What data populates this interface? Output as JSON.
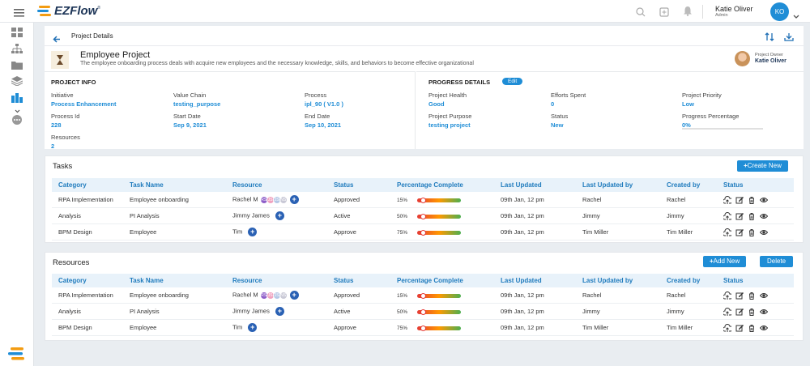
{
  "app": {
    "logo": "EZFlow",
    "logo_tm": "®"
  },
  "user": {
    "name": "Katie Oliver",
    "role": "Admin",
    "initials": "KO"
  },
  "page": {
    "title": "Project Details"
  },
  "project": {
    "name": "Employee Project",
    "description": "The employee onboarding process deals with acquire new employees and the necessary knowledge, skills, and behaviors to become effective organizational",
    "owner_label": "Project Owner",
    "owner_name": "Katie Oliver"
  },
  "project_info": {
    "title": "PROJECT INFO",
    "fields": [
      {
        "label": "Initiative",
        "value": "Process Enhancement"
      },
      {
        "label": "Value Chain",
        "value": "testing_purpose"
      },
      {
        "label": "Process",
        "value": "ipl_90 ( V1.0 )"
      },
      {
        "label": "Process Id",
        "value": "228"
      },
      {
        "label": "Start Date",
        "value": "Sep 9, 2021"
      },
      {
        "label": "End Date",
        "value": "Sep 10, 2021"
      },
      {
        "label": "Resources",
        "value": "2"
      }
    ]
  },
  "progress_details": {
    "title": "PROGRESS DETAILS",
    "edit_label": "Edit",
    "progress_fraction": 0,
    "fields": [
      {
        "label": "Project Health",
        "value": "Good"
      },
      {
        "label": "Efforts Spent",
        "value": "0"
      },
      {
        "label": "Project Priority",
        "value": "Low"
      },
      {
        "label": "Project Purpose",
        "value": "testing project"
      },
      {
        "label": "Status",
        "value": "New"
      },
      {
        "label": "Progress Percentage",
        "value": "0%"
      }
    ]
  },
  "columns": [
    "Category",
    "Task Name",
    "Resource",
    "Status",
    "Percentage Complete",
    "Last Updated",
    "Last Updated by",
    "Created by",
    "Status"
  ],
  "tasks": {
    "title": "Tasks",
    "create_label": "Create New",
    "rows": [
      {
        "category": "RPA Implementation",
        "task": "Employee onboarding",
        "resource": "Rachel M",
        "avatars": [
          "RS",
          "JS",
          "JS",
          "NS"
        ],
        "status": "Approved",
        "pct": "15%",
        "updated": "09th Jan, 12 pm",
        "updated_by": "Rachel",
        "created_by": "Rachel"
      },
      {
        "category": "Analysis",
        "task": "PI Analysis",
        "resource": "Jimmy James",
        "avatars": [],
        "status": "Active",
        "pct": "50%",
        "updated": "09th Jan, 12 pm",
        "updated_by": "Jimmy",
        "created_by": "Jimmy"
      },
      {
        "category": "BPM Design",
        "task": "Employee",
        "resource": "Tim",
        "avatars": [],
        "status": "Approve",
        "pct": "75%",
        "updated": "09th Jan, 12 pm",
        "updated_by": "Tim Miller",
        "created_by": "Tim Miller"
      }
    ]
  },
  "resources": {
    "title": "Resources",
    "add_label": "Add New",
    "delete_label": "Delete",
    "rows": [
      {
        "category": "RPA Implementation",
        "task": "Employee onboarding",
        "resource": "Rachel M",
        "avatars": [
          "RS",
          "JS",
          "JS",
          "NS"
        ],
        "status": "Approved",
        "pct": "15%",
        "updated": "09th Jan, 12 pm",
        "updated_by": "Rachel",
        "created_by": "Rachel"
      },
      {
        "category": "Analysis",
        "task": "PI Analysis",
        "resource": "Jimmy James",
        "avatars": [],
        "status": "Active",
        "pct": "50%",
        "updated": "09th Jan, 12 pm",
        "updated_by": "Jimmy",
        "created_by": "Jimmy"
      },
      {
        "category": "BPM Design",
        "task": "Employee",
        "resource": "Tim",
        "avatars": [],
        "status": "Approve",
        "pct": "75%",
        "updated": "09th Jan, 12 pm",
        "updated_by": "Tim Miller",
        "created_by": "Tim Miller"
      }
    ]
  },
  "colors": {
    "accent": "#1f8dd6",
    "header_bg": "#e8f2fa",
    "avatar_colors": [
      "#8e5fc9",
      "#f0a3c0",
      "#b6c8e6",
      "#c9c9d6"
    ]
  },
  "icons": [
    "menu-icon",
    "search-icon",
    "add-box-icon",
    "bell-icon",
    "back-arrow-icon",
    "swap-icon",
    "download-icon",
    "hourglass-icon",
    "upload-icon",
    "edit-icon",
    "trash-icon",
    "eye-icon"
  ]
}
